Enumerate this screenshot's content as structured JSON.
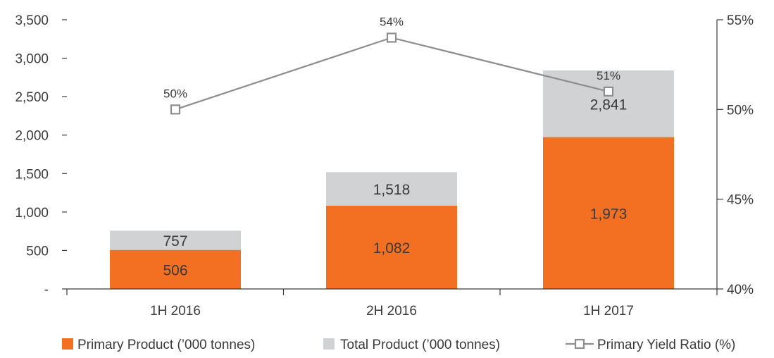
{
  "chart_data": {
    "type": "bar",
    "stacked": false,
    "overlap": true,
    "categories": [
      "1H 2016",
      "2H 2016",
      "1H 2017"
    ],
    "series": [
      {
        "name": "Primary Product (’000 tonnes)",
        "type": "bar",
        "values": [
          506,
          1082,
          1973
        ],
        "labels": [
          "506",
          "1,082",
          "1,973"
        ]
      },
      {
        "name": "Total Product (’000 tonnes)",
        "type": "bar",
        "values": [
          757,
          1518,
          2841
        ],
        "labels": [
          "757",
          "1,518",
          "2,841"
        ]
      },
      {
        "name": "Primary Yield Ratio (%)",
        "type": "line",
        "axis": "right",
        "values": [
          50,
          54,
          51
        ],
        "labels": [
          "50%",
          "54%",
          "51%"
        ]
      }
    ],
    "y_left": {
      "ylim": [
        0,
        3500
      ],
      "ticks": [
        0,
        500,
        1000,
        1500,
        2000,
        2500,
        3000,
        3500
      ],
      "tick_labels": [
        "-",
        "500",
        "1,000",
        "1,500",
        "2,000",
        "2,500",
        "3,000",
        "3,500"
      ]
    },
    "y_right": {
      "ylim": [
        40,
        55
      ],
      "ticks": [
        40,
        45,
        50,
        55
      ],
      "tick_labels": [
        "40%",
        "45%",
        "50%",
        "55%"
      ]
    },
    "legend_position": "bottom",
    "grid": false,
    "colors": {
      "primary": "#f36f21",
      "total": "#d1d2d4",
      "line": "#8e8e8e",
      "axis": "#3a3a3a"
    }
  }
}
